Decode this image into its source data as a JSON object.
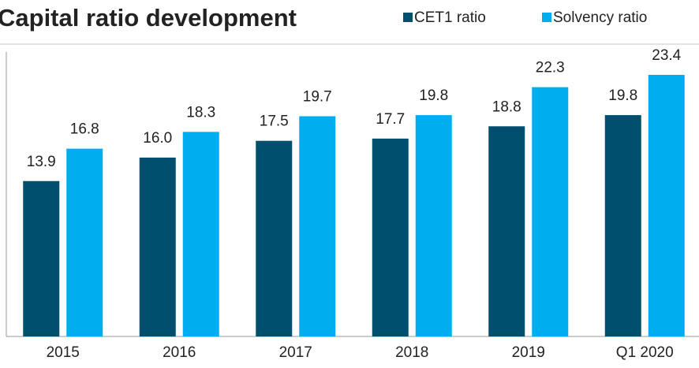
{
  "chart_data": {
    "type": "bar",
    "title": "Capital ratio development",
    "categories": [
      "2015",
      "2016",
      "2017",
      "2018",
      "2019",
      "Q1 2020"
    ],
    "series": [
      {
        "name": "CET1 ratio",
        "color": "#004f6f",
        "values": [
          13.9,
          16.0,
          17.5,
          17.7,
          18.8,
          19.8
        ],
        "value_labels": [
          "13.9",
          "16.0",
          "17.5",
          "17.7",
          "18.8",
          "19.8"
        ]
      },
      {
        "name": "Solvency ratio",
        "color": "#00aeef",
        "values": [
          16.8,
          18.3,
          19.7,
          19.8,
          22.3,
          23.4
        ],
        "value_labels": [
          "16.8",
          "18.3",
          "19.7",
          "19.8",
          "22.3",
          "23.4"
        ]
      }
    ],
    "legend": "top-right"
  }
}
